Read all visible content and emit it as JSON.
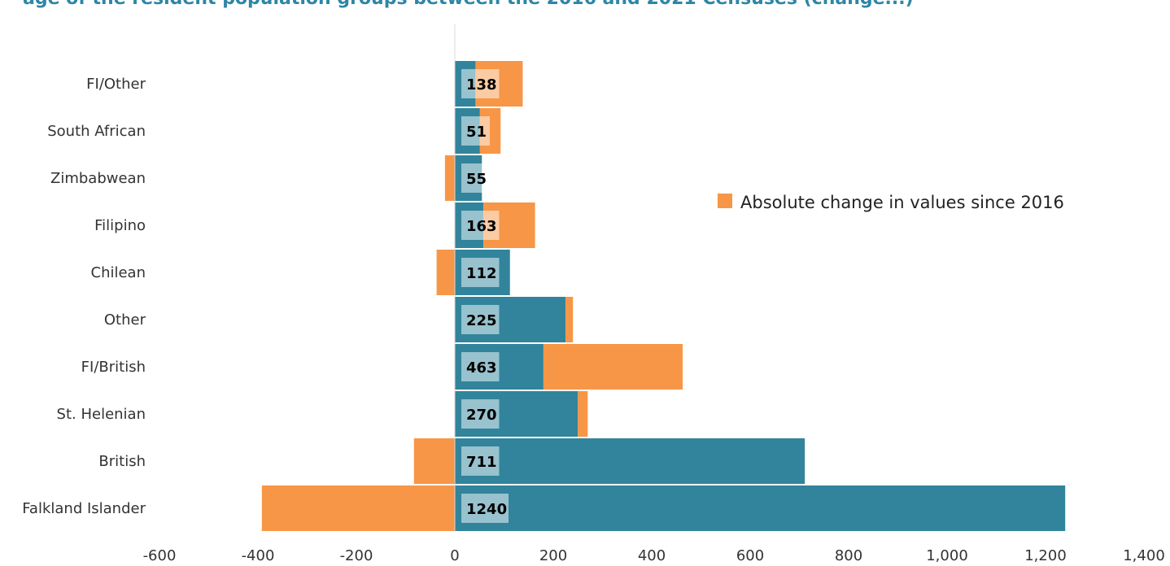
{
  "title": "age of the resident population groups between the 2016 and 2021 Censuses (change...)",
  "chart_data": {
    "type": "bar",
    "orientation": "horizontal",
    "title": "",
    "xlabel": "",
    "ylabel": "",
    "categories": [
      "Falkland Islander",
      "British",
      "St. Helenian",
      "FI/British",
      "Other",
      "Chilean",
      "Filipino",
      "Zimbabwean",
      "South African",
      "FI/Other"
    ],
    "series": [
      {
        "values": [
          1240,
          711,
          250,
          180,
          225,
          112,
          58,
          55,
          51,
          42
        ],
        "color": "#31849b"
      },
      {
        "name": "Absolute change in values since 2016",
        "values": [
          -392,
          -83,
          20,
          283,
          15,
          -37,
          105,
          -20,
          42,
          96
        ],
        "color": "#f79646"
      }
    ],
    "data_labels": [
      "1240",
      "711",
      "270",
      "463",
      "225",
      "112",
      "163",
      "55",
      "51",
      "138"
    ],
    "xlim": [
      -600,
      1400
    ],
    "xticks": [
      "-600",
      "-400",
      "-200",
      "0",
      "200",
      "400",
      "600",
      "800",
      "1,000",
      "1,200",
      "1,400"
    ],
    "legend": {
      "position": "right",
      "entries": [
        "Absolute change in values since 2016"
      ]
    },
    "grid": false
  }
}
